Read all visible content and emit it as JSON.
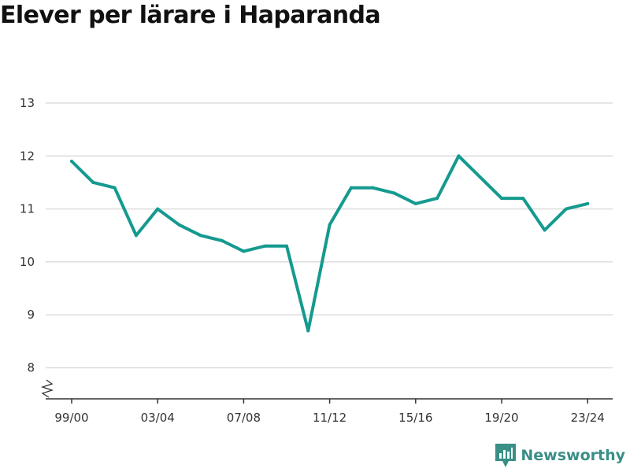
{
  "chart_data": {
    "type": "line",
    "title": "Elever per lärare i Haparanda",
    "xlabel": "",
    "ylabel": "",
    "categories": [
      "99/00",
      "00/01",
      "01/02",
      "02/03",
      "03/04",
      "04/05",
      "05/06",
      "06/07",
      "07/08",
      "08/09",
      "09/10",
      "10/11",
      "11/12",
      "12/13",
      "13/14",
      "14/15",
      "15/16",
      "16/17",
      "17/18",
      "18/19",
      "19/20",
      "20/21",
      "21/22",
      "22/23",
      "23/24"
    ],
    "x_tick_labels": [
      "99/00",
      "03/04",
      "07/08",
      "11/12",
      "15/16",
      "19/20",
      "23/24"
    ],
    "series": [
      {
        "values": [
          11.9,
          11.5,
          11.4,
          10.5,
          11.0,
          10.7,
          10.5,
          10.4,
          10.2,
          10.3,
          10.3,
          8.7,
          10.7,
          11.4,
          11.4,
          11.3,
          11.1,
          11.2,
          12.0,
          11.6,
          11.2,
          11.2,
          10.6,
          11.0,
          11.1
        ],
        "color": "#159a8f"
      }
    ],
    "ylim": [
      8,
      13
    ],
    "y_ticks": [
      8,
      9,
      10,
      11,
      12,
      13
    ],
    "y_axis_broken": true,
    "grid": true,
    "legend": "none"
  },
  "colors": {
    "line": "#159a8f",
    "grid": "#dddddd",
    "axis": "#333333",
    "brand": "#3a8f87"
  },
  "branding": {
    "name": "Newsworthy",
    "icon": "newsworthy-logo-icon"
  }
}
